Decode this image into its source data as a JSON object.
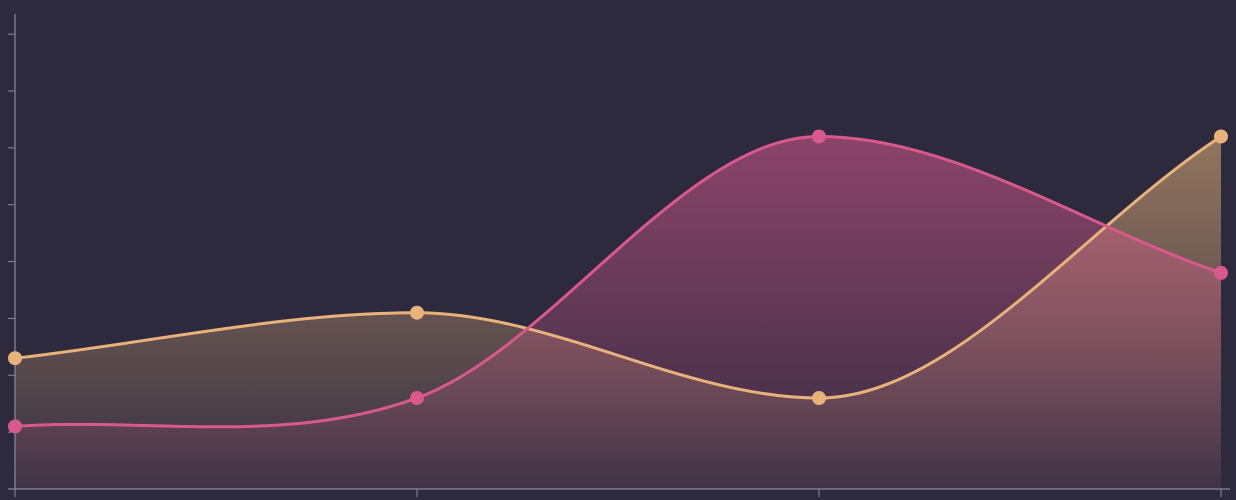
{
  "colors": {
    "background": "#2d2a3e",
    "axis": "#8c8a99",
    "series_orange": "#e8b37a",
    "series_pink": "#d9598c"
  },
  "chart_data": {
    "type": "area",
    "x": [
      0,
      1,
      2,
      3
    ],
    "series": [
      {
        "values": [
          2.3,
          3.1,
          1.6,
          6.2
        ],
        "color": "#e8b37a"
      },
      {
        "values": [
          1.1,
          1.6,
          6.2,
          3.8
        ],
        "color": "#d9598c"
      }
    ],
    "xlim": [
      0,
      3
    ],
    "ylim": [
      0,
      8.6
    ],
    "y_ticks": [
      0,
      1,
      2,
      3,
      4,
      5,
      6,
      7,
      8
    ],
    "x_ticks": [
      0,
      1,
      2,
      3
    ],
    "curve": "smooth",
    "grid": false,
    "legend": "none",
    "title": "",
    "xlabel": "",
    "ylabel": ""
  }
}
